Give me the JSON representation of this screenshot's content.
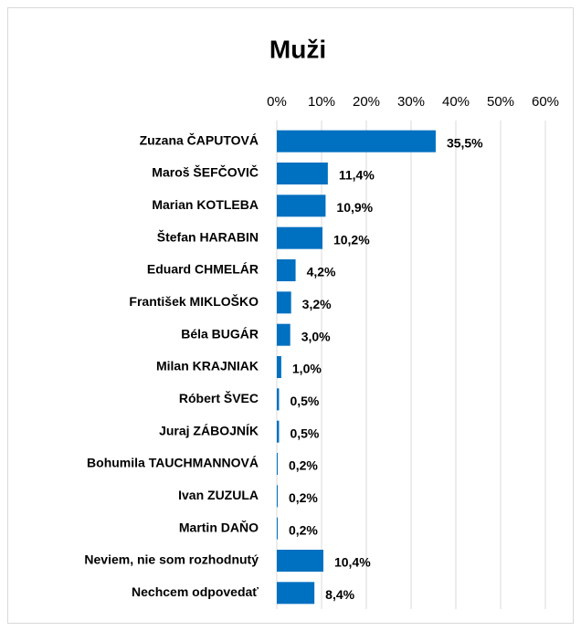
{
  "chart_data": {
    "type": "bar",
    "title": "Muži",
    "categories": [
      "Zuzana ČAPUTOVÁ",
      "Maroš ŠEFČOVIČ",
      "Marian KOTLEBA",
      "Štefan HARABIN",
      "Eduard CHMELÁR",
      "František MIKLOŠKO",
      "Béla BUGÁR",
      "Milan KRAJNIAK",
      "Róbert ŠVEC",
      "Juraj ZÁBOJNÍK",
      "Bohumila TAUCHMANNOVÁ",
      "Ivan ZUZULA",
      "Martin DAŇO",
      "Neviem, nie som rozhodnutý",
      "Nechcem odpovedať"
    ],
    "values": [
      35.5,
      11.4,
      10.9,
      10.2,
      4.2,
      3.2,
      3.0,
      1.0,
      0.5,
      0.5,
      0.2,
      0.2,
      0.2,
      10.4,
      8.4
    ],
    "value_labels": [
      "35,5%",
      "11,4%",
      "10,9%",
      "10,2%",
      "4,2%",
      "3,2%",
      "3,0%",
      "1,0%",
      "0,5%",
      "0,5%",
      "0,2%",
      "0,2%",
      "0,2%",
      "10,4%",
      "8,4%"
    ],
    "color": "#0070c0",
    "xlim": [
      0,
      60
    ],
    "xticks": [
      {
        "value": 0,
        "label": "0%"
      },
      {
        "value": 10,
        "label": "10%"
      },
      {
        "value": 20,
        "label": "20%"
      },
      {
        "value": 30,
        "label": "30%"
      },
      {
        "value": 40,
        "label": "40%"
      },
      {
        "value": 50,
        "label": "50%"
      },
      {
        "value": 60,
        "label": "60%"
      }
    ],
    "grid": true
  }
}
